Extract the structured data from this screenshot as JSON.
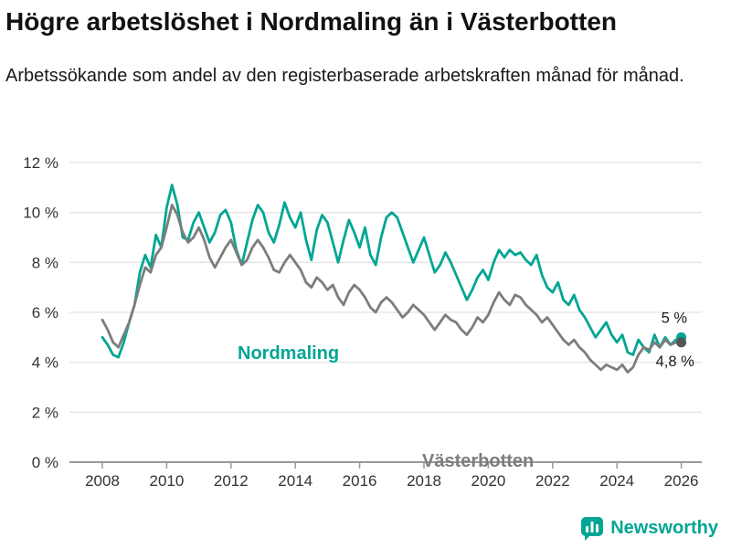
{
  "header": {
    "title": "Högre arbetslöshet i Nordmaling än i Västerbotten",
    "subtitle": "Arbetssökande som andel av den registerbaserade arbetskraften månad för månad."
  },
  "chart_data": {
    "type": "line",
    "title": "Högre arbetslöshet i Nordmaling än i Västerbotten",
    "xlabel": "",
    "ylabel": "",
    "ylim": [
      0,
      12
    ],
    "y_tick_labels": [
      "0 %",
      "2 %",
      "4 %",
      "6 %",
      "8 %",
      "10 %",
      "12 %"
    ],
    "y_tick_values": [
      0,
      2,
      4,
      6,
      8,
      10,
      12
    ],
    "x_tick_years": [
      2008,
      2010,
      2012,
      2014,
      2016,
      2018,
      2020,
      2022,
      2024,
      2026
    ],
    "x_start_year": 2008,
    "points_per_year": 6,
    "grid": "horizontal",
    "legend_position": "inline-labels",
    "series": [
      {
        "name": "Nordmaling",
        "color": "#00A693",
        "end_label": "5 %",
        "values": [
          5.0,
          4.7,
          4.3,
          4.2,
          4.8,
          5.6,
          6.3,
          7.6,
          8.3,
          7.8,
          9.1,
          8.6,
          10.2,
          11.1,
          10.3,
          9.0,
          8.9,
          9.6,
          10.0,
          9.4,
          8.8,
          9.2,
          9.9,
          10.1,
          9.6,
          8.5,
          7.9,
          8.8,
          9.7,
          10.3,
          10.0,
          9.2,
          8.8,
          9.5,
          10.4,
          9.8,
          9.4,
          10.0,
          8.9,
          8.1,
          9.3,
          9.9,
          9.6,
          8.8,
          8.0,
          8.9,
          9.7,
          9.2,
          8.6,
          9.4,
          8.3,
          7.9,
          9.0,
          9.8,
          10.0,
          9.8,
          9.2,
          8.6,
          8.0,
          8.5,
          9.0,
          8.3,
          7.6,
          7.9,
          8.4,
          8.0,
          7.5,
          7.0,
          6.5,
          6.9,
          7.4,
          7.7,
          7.3,
          8.0,
          8.5,
          8.2,
          8.5,
          8.3,
          8.4,
          8.1,
          7.9,
          8.3,
          7.5,
          7.0,
          6.8,
          7.2,
          6.5,
          6.3,
          6.7,
          6.1,
          5.8,
          5.4,
          5.0,
          5.3,
          5.6,
          5.1,
          4.8,
          5.1,
          4.4,
          4.3,
          4.9,
          4.6,
          4.4,
          5.1,
          4.6,
          5.0,
          4.7,
          4.9,
          5.0
        ]
      },
      {
        "name": "Västerbotten",
        "color": "#7d7d7d",
        "end_label": "4,8 %",
        "values": [
          5.7,
          5.3,
          4.8,
          4.6,
          5.1,
          5.6,
          6.3,
          7.1,
          7.8,
          7.6,
          8.3,
          8.6,
          9.4,
          10.3,
          9.9,
          9.2,
          8.8,
          9.0,
          9.4,
          8.9,
          8.2,
          7.8,
          8.2,
          8.6,
          8.9,
          8.4,
          7.9,
          8.1,
          8.6,
          8.9,
          8.6,
          8.2,
          7.7,
          7.6,
          8.0,
          8.3,
          8.0,
          7.7,
          7.2,
          7.0,
          7.4,
          7.2,
          6.9,
          7.1,
          6.6,
          6.3,
          6.8,
          7.1,
          6.9,
          6.6,
          6.2,
          6.0,
          6.4,
          6.6,
          6.4,
          6.1,
          5.8,
          6.0,
          6.3,
          6.1,
          5.9,
          5.6,
          5.3,
          5.6,
          5.9,
          5.7,
          5.6,
          5.3,
          5.1,
          5.4,
          5.8,
          5.6,
          5.9,
          6.4,
          6.8,
          6.5,
          6.3,
          6.7,
          6.6,
          6.3,
          6.1,
          5.9,
          5.6,
          5.8,
          5.5,
          5.2,
          4.9,
          4.7,
          4.9,
          4.6,
          4.4,
          4.1,
          3.9,
          3.7,
          3.9,
          3.8,
          3.7,
          3.9,
          3.6,
          3.8,
          4.3,
          4.6,
          4.5,
          4.8,
          4.6,
          4.9,
          4.7,
          4.8,
          4.8
        ]
      }
    ]
  },
  "footer": {
    "brand": "Newsworthy",
    "brand_color": "#00A693"
  }
}
